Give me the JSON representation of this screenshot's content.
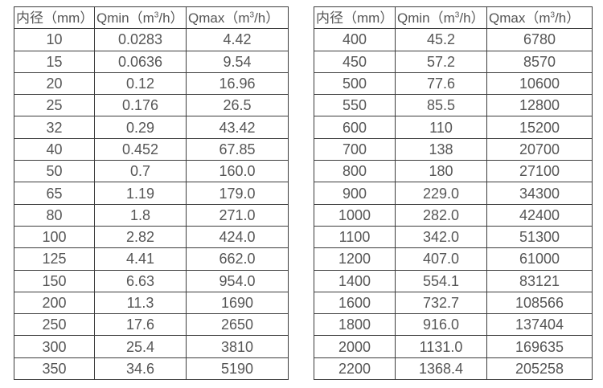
{
  "colors": {
    "background": "#ffffff",
    "border": "#3c3c3c",
    "text": "#565656"
  },
  "chart_data": [
    {
      "type": "table",
      "title": "",
      "columns": {
        "diameter": "内径（mm）",
        "qmin_prefix": "Qmin（m",
        "qmin_sup": "3",
        "qmin_suffix": "/h）",
        "qmax_prefix": "Qmax（m",
        "qmax_sup": "3",
        "qmax_suffix": "/h）"
      },
      "rows": [
        [
          "10",
          "0.0283",
          "4.42"
        ],
        [
          "15",
          "0.0636",
          "9.54"
        ],
        [
          "20",
          "0.12",
          "16.96"
        ],
        [
          "25",
          "0.176",
          "26.5"
        ],
        [
          "32",
          "0.29",
          "43.42"
        ],
        [
          "40",
          "0.452",
          "67.85"
        ],
        [
          "50",
          "0.7",
          "160.0"
        ],
        [
          "65",
          "1.19",
          "179.0"
        ],
        [
          "80",
          "1.8",
          "271.0"
        ],
        [
          "100",
          "2.82",
          "424.0"
        ],
        [
          "125",
          "4.41",
          "662.0"
        ],
        [
          "150",
          "6.63",
          "954.0"
        ],
        [
          "200",
          "11.3",
          "1690"
        ],
        [
          "250",
          "17.6",
          "2650"
        ],
        [
          "300",
          "25.4",
          "3810"
        ],
        [
          "350",
          "34.6",
          "5190"
        ]
      ]
    },
    {
      "type": "table",
      "title": "",
      "columns": {
        "diameter": "内径（mm）",
        "qmin_prefix": "Qmin（m",
        "qmin_sup": "3",
        "qmin_suffix": "/h）",
        "qmax_prefix": "Qmax（m",
        "qmax_sup": "3",
        "qmax_suffix": "/h）"
      },
      "rows": [
        [
          "400",
          "45.2",
          "6780"
        ],
        [
          "450",
          "57.2",
          "8570"
        ],
        [
          "500",
          "77.6",
          "10600"
        ],
        [
          "550",
          "85.5",
          "12800"
        ],
        [
          "600",
          "110",
          "15200"
        ],
        [
          "700",
          "138",
          "20700"
        ],
        [
          "800",
          "180",
          "27100"
        ],
        [
          "900",
          "229.0",
          "34300"
        ],
        [
          "1000",
          "282.0",
          "42400"
        ],
        [
          "1100",
          "342.0",
          "51300"
        ],
        [
          "1200",
          "407.0",
          "61000"
        ],
        [
          "1400",
          "554.1",
          "83121"
        ],
        [
          "1600",
          "732.7",
          "108566"
        ],
        [
          "1800",
          "916.0",
          "137404"
        ],
        [
          "2000",
          "1131.0",
          "169635"
        ],
        [
          "2200",
          "1368.4",
          "205258"
        ]
      ]
    }
  ]
}
